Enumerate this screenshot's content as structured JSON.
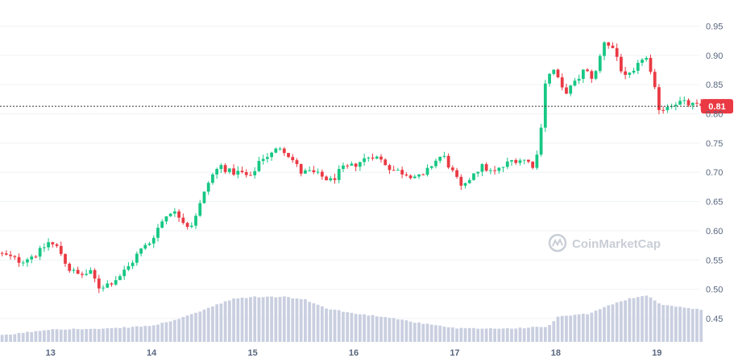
{
  "chart_data": {
    "type": "candlestick",
    "watermark": "CoinMarketCap",
    "current_price": {
      "label": "0.81",
      "value": 0.813
    },
    "colors": {
      "up": "#16c784",
      "down": "#ea3943",
      "volume": "#c9cfe0",
      "grid": "#eff2f5",
      "text": "#58667e",
      "price_line": "#333333",
      "price_tag": "#ea3943"
    },
    "grid": true,
    "y_axis": {
      "side": "right",
      "range": [
        0.41,
        0.97
      ],
      "ticks": [
        0.45,
        0.5,
        0.55,
        0.6,
        0.65,
        0.7,
        0.75,
        0.8,
        0.85,
        0.9,
        0.95
      ],
      "tick_labels": [
        "0.45",
        "0.50",
        "0.55",
        "0.60",
        "0.65",
        "0.70",
        "0.75",
        "0.80",
        "0.85",
        "0.90",
        "0.95"
      ]
    },
    "x_axis": {
      "range": [
        12.5,
        19.42
      ],
      "ticks": [
        13,
        14,
        15,
        16,
        17,
        18,
        19
      ],
      "tick_labels": [
        "13",
        "14",
        "15",
        "16",
        "17",
        "18",
        "19"
      ]
    },
    "keypoints": [
      [
        12.5,
        0.562
      ],
      [
        12.6,
        0.556
      ],
      [
        12.72,
        0.548
      ],
      [
        12.82,
        0.556
      ],
      [
        12.9,
        0.562
      ],
      [
        13.0,
        0.58
      ],
      [
        13.1,
        0.57
      ],
      [
        13.2,
        0.535
      ],
      [
        13.3,
        0.524
      ],
      [
        13.42,
        0.528
      ],
      [
        13.5,
        0.504
      ],
      [
        13.6,
        0.51
      ],
      [
        13.7,
        0.522
      ],
      [
        13.8,
        0.54
      ],
      [
        13.9,
        0.565
      ],
      [
        14.0,
        0.58
      ],
      [
        14.1,
        0.61
      ],
      [
        14.2,
        0.635
      ],
      [
        14.3,
        0.625
      ],
      [
        14.4,
        0.605
      ],
      [
        14.5,
        0.645
      ],
      [
        14.6,
        0.69
      ],
      [
        14.7,
        0.712
      ],
      [
        14.8,
        0.7
      ],
      [
        14.9,
        0.7
      ],
      [
        15.0,
        0.69
      ],
      [
        15.1,
        0.725
      ],
      [
        15.2,
        0.73
      ],
      [
        15.3,
        0.745
      ],
      [
        15.4,
        0.725
      ],
      [
        15.5,
        0.7
      ],
      [
        15.6,
        0.7
      ],
      [
        15.7,
        0.693
      ],
      [
        15.8,
        0.685
      ],
      [
        15.9,
        0.705
      ],
      [
        16.0,
        0.71
      ],
      [
        16.1,
        0.72
      ],
      [
        16.2,
        0.73
      ],
      [
        16.3,
        0.72
      ],
      [
        16.4,
        0.705
      ],
      [
        16.5,
        0.7
      ],
      [
        16.6,
        0.695
      ],
      [
        16.7,
        0.69
      ],
      [
        16.8,
        0.715
      ],
      [
        16.9,
        0.73
      ],
      [
        17.0,
        0.7
      ],
      [
        17.1,
        0.668
      ],
      [
        17.2,
        0.7
      ],
      [
        17.3,
        0.71
      ],
      [
        17.4,
        0.698
      ],
      [
        17.5,
        0.71
      ],
      [
        17.6,
        0.722
      ],
      [
        17.7,
        0.722
      ],
      [
        17.8,
        0.712
      ],
      [
        17.85,
        0.738
      ],
      [
        17.92,
        0.86
      ],
      [
        18.0,
        0.875
      ],
      [
        18.1,
        0.835
      ],
      [
        18.2,
        0.85
      ],
      [
        18.3,
        0.875
      ],
      [
        18.4,
        0.86
      ],
      [
        18.5,
        0.925
      ],
      [
        18.6,
        0.91
      ],
      [
        18.7,
        0.86
      ],
      [
        18.8,
        0.87
      ],
      [
        18.9,
        0.905
      ],
      [
        19.0,
        0.84
      ],
      [
        19.05,
        0.805
      ],
      [
        19.15,
        0.818
      ],
      [
        19.25,
        0.82
      ],
      [
        19.42,
        0.813
      ]
    ],
    "volume_profile": [
      [
        12.5,
        0.421
      ],
      [
        13.0,
        0.432
      ],
      [
        13.5,
        0.432
      ],
      [
        14.0,
        0.438
      ],
      [
        14.3,
        0.452
      ],
      [
        14.6,
        0.472
      ],
      [
        14.8,
        0.484
      ],
      [
        15.0,
        0.487
      ],
      [
        15.3,
        0.487
      ],
      [
        15.5,
        0.482
      ],
      [
        15.7,
        0.468
      ],
      [
        16.0,
        0.458
      ],
      [
        16.3,
        0.453
      ],
      [
        16.6,
        0.443
      ],
      [
        17.0,
        0.433
      ],
      [
        17.5,
        0.433
      ],
      [
        17.9,
        0.436
      ],
      [
        18.0,
        0.453
      ],
      [
        18.3,
        0.458
      ],
      [
        18.5,
        0.472
      ],
      [
        18.7,
        0.484
      ],
      [
        18.9,
        0.489
      ],
      [
        19.0,
        0.475
      ],
      [
        19.42,
        0.465
      ]
    ]
  }
}
